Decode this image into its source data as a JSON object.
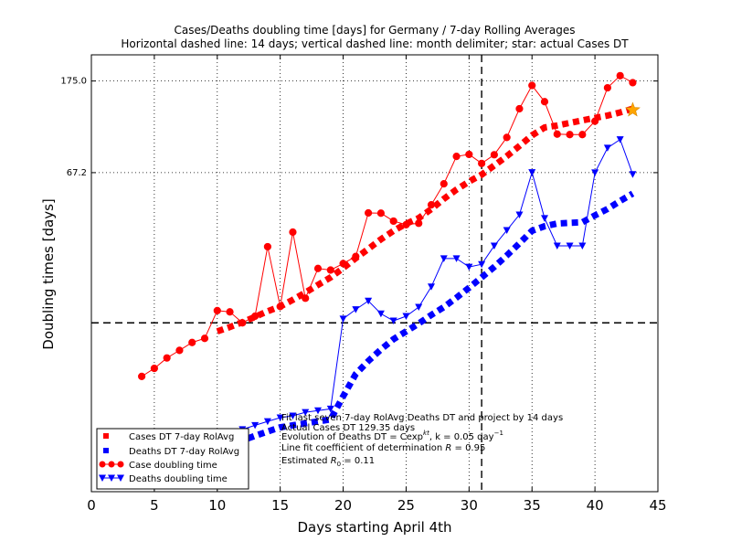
{
  "chart_data": {
    "type": "line",
    "title": "Cases/Deaths doubling time [days] for Germany / 7-day Rolling Averages",
    "subtitle": "Horizontal dashed line: 14 days; vertical dashed line: month delimiter; star: actual Cases DT",
    "xlabel": "Days starting April 4th",
    "ylabel": "Doubling times [days]",
    "xlim": [
      0,
      45
    ],
    "ylim": [
      2.4,
      230
    ],
    "yscale": "log",
    "grid": true,
    "legend_position": "lower-left",
    "x_ticks": [
      "0",
      "5",
      "10",
      "15",
      "20",
      "25",
      "30",
      "35",
      "40",
      "45"
    ],
    "y_ticks": [
      {
        "value": 67.2,
        "label": "67.2"
      },
      {
        "value": 175.0,
        "label": "175.0"
      }
    ],
    "reference_lines": {
      "horizontal": 14,
      "vertical": 31
    },
    "series": [
      {
        "name": "Case doubling time",
        "color": "#ff0000",
        "marker": "circle",
        "x": [
          4,
          5,
          6,
          7,
          8,
          9,
          10,
          11,
          12,
          13,
          14,
          15,
          16,
          17,
          18,
          19,
          20,
          21,
          22,
          23,
          24,
          25,
          26,
          27,
          28,
          29,
          30,
          31,
          32,
          33,
          34,
          35,
          36,
          37,
          38,
          39,
          40,
          41,
          42,
          43
        ],
        "y": [
          8.0,
          8.7,
          9.7,
          10.5,
          11.4,
          11.9,
          15.9,
          15.7,
          14.0,
          15.0,
          31.0,
          16.6,
          36.1,
          18.1,
          24.7,
          24.3,
          26.0,
          28.0,
          44.1,
          44.0,
          40.5,
          39.0,
          39.6,
          48.0,
          59.8,
          79.6,
          81.3,
          74.0,
          81.0,
          97.1,
          131.0,
          167.0,
          141.0,
          100.5,
          100.0,
          100.0,
          115.0,
          163.0,
          185.0,
          172.0
        ]
      },
      {
        "name": "Cases DT 7-day RolAvg",
        "color": "#ff0000",
        "marker": "square",
        "x": [
          10,
          11,
          12,
          13,
          14,
          15,
          16,
          17,
          18,
          19,
          20,
          21,
          22,
          23,
          24,
          25,
          26,
          27,
          28,
          29,
          30,
          31,
          32,
          33,
          34,
          35,
          36,
          37,
          38,
          39,
          40,
          41,
          42,
          43
        ],
        "y": [
          12.8,
          13.4,
          14.1,
          14.9,
          15.8,
          16.6,
          17.8,
          19.2,
          20.8,
          22.5,
          24.8,
          27.5,
          30.3,
          33.5,
          36.6,
          39.4,
          41.8,
          45.9,
          51.1,
          56.3,
          61.2,
          65.8,
          72.4,
          79.8,
          88.8,
          99.2,
          107.7,
          110.0,
          113.0,
          116.0,
          119.0,
          122.0,
          126.0,
          131.0
        ]
      },
      {
        "name": "Deaths doubling time",
        "color": "#0000ff",
        "marker": "triangle-down",
        "x": [
          8,
          9,
          10,
          11,
          12,
          13,
          14,
          15,
          16,
          17,
          18,
          19,
          20,
          21,
          22,
          23,
          24,
          25,
          26,
          27,
          28,
          29,
          30,
          31,
          32,
          33,
          34,
          35,
          36,
          37,
          38,
          39,
          40,
          41,
          42,
          43
        ],
        "y": [
          3.8,
          3.9,
          3.9,
          4.2,
          4.6,
          4.8,
          5.0,
          5.2,
          5.3,
          5.5,
          5.6,
          5.7,
          14.6,
          16.1,
          17.6,
          15.4,
          14.3,
          15.0,
          16.5,
          20.4,
          27.4,
          27.4,
          25.1,
          25.8,
          31.3,
          36.8,
          43.3,
          67.4,
          41.7,
          31.3,
          31.3,
          31.3,
          67.2,
          87.0,
          95.0,
          66.0
        ]
      },
      {
        "name": "Deaths DT 7-day RolAvg",
        "color": "#0000ff",
        "marker": "square",
        "x": [
          10,
          11,
          12,
          13,
          14,
          15,
          16,
          17,
          18,
          19,
          20,
          21,
          22,
          23,
          24,
          25,
          26,
          27,
          28,
          29,
          30,
          31,
          32,
          33,
          34,
          35,
          36,
          37,
          38,
          39,
          40,
          41,
          42,
          43
        ],
        "y": [
          3.7,
          3.9,
          4.1,
          4.3,
          4.5,
          4.7,
          4.8,
          4.9,
          5.0,
          5.1,
          6.5,
          8.2,
          9.4,
          10.6,
          11.8,
          12.8,
          13.9,
          15.2,
          16.5,
          18.2,
          20.2,
          22.5,
          25.1,
          28.3,
          32.1,
          36.6,
          38.4,
          39.5,
          39.8,
          40.0,
          43.0,
          46.0,
          50.0,
          54.0
        ]
      }
    ],
    "star": {
      "x": 43,
      "y": 129.35,
      "color": "#ffa500"
    },
    "annotations": [
      "Fit last seven 7-day RolAvg Deaths DT and project by 14 days",
      "Actual Cases DT 129.35 days",
      "Evolution of Deaths DT = Cexp",
      "kt",
      ", k = 0.05 day",
      "−1",
      "Line fit coefficient of determination ",
      "R",
      " = 0.95",
      "Estimated ",
      "R",
      "0",
      " = 0.11"
    ],
    "legend": [
      "Cases DT 7-day RolAvg",
      "Deaths DT 7-day RolAvg",
      "Case doubling time",
      "Deaths doubling time"
    ]
  }
}
